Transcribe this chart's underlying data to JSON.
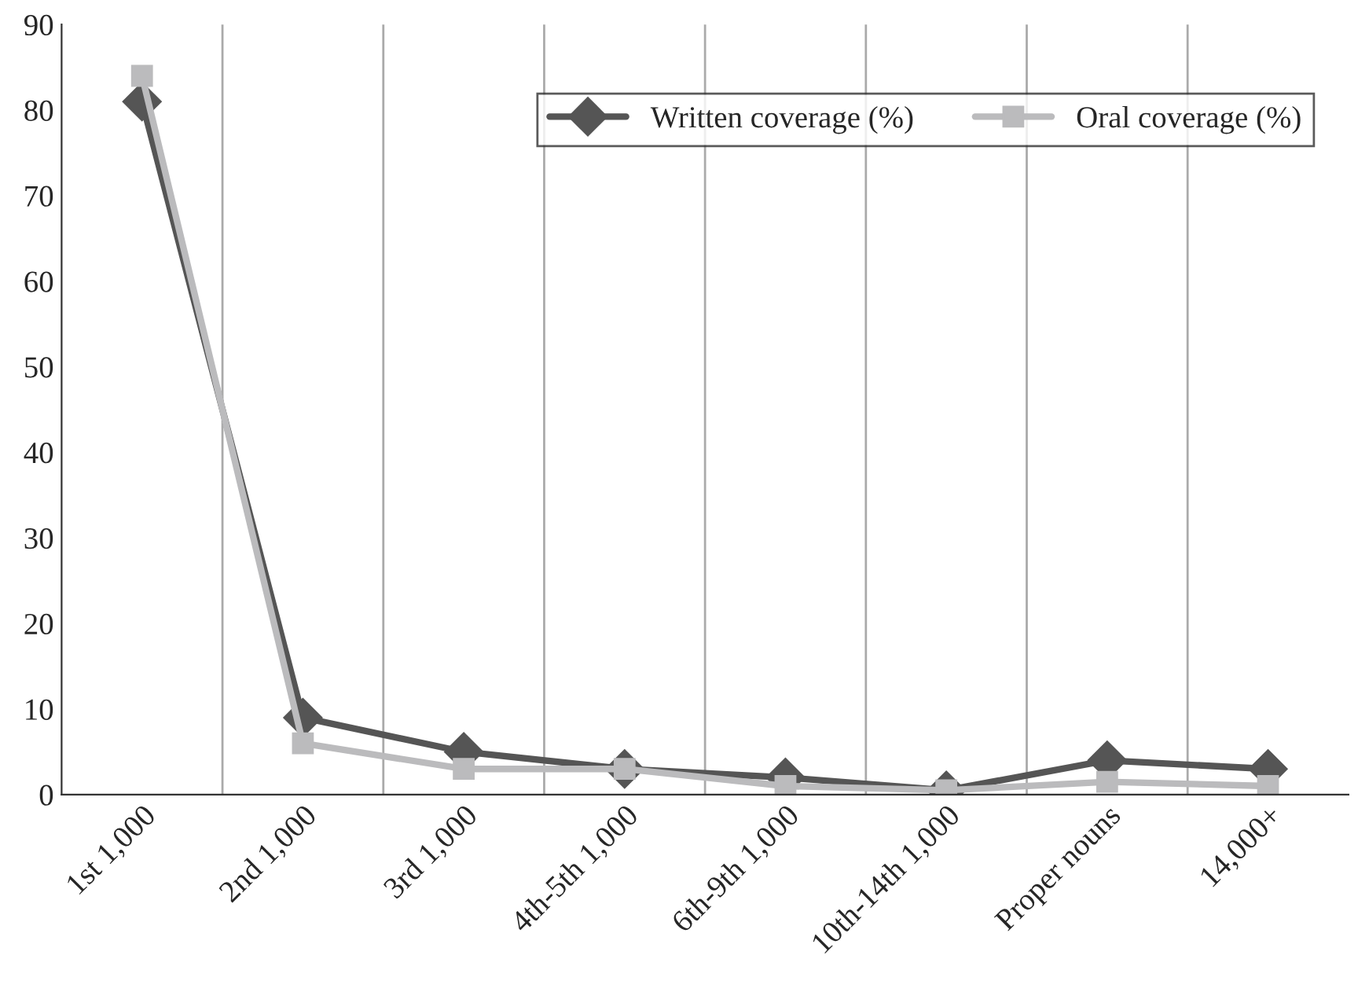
{
  "chart_data": {
    "type": "line",
    "categories": [
      "1st 1,000",
      "2nd 1,000",
      "3rd 1,000",
      "4th-5th 1,000",
      "6th-9th 1,000",
      "10th-14th 1,000",
      "Proper nouns",
      "14,000+"
    ],
    "series": [
      {
        "name": "Written coverage (%)",
        "color": "#555555",
        "marker": "diamond",
        "values": [
          81,
          9,
          5,
          3,
          2,
          0.5,
          4,
          3
        ]
      },
      {
        "name": "Oral coverage (%)",
        "color": "#bbbbbd",
        "marker": "square",
        "values": [
          84,
          6,
          3,
          3,
          1,
          0.5,
          1.5,
          1
        ]
      }
    ],
    "ylim": [
      0,
      90
    ],
    "yticks": [
      0,
      10,
      20,
      30,
      40,
      50,
      60,
      70,
      80,
      90
    ],
    "grid": "x",
    "legend": "top right",
    "line_style": "solid"
  }
}
